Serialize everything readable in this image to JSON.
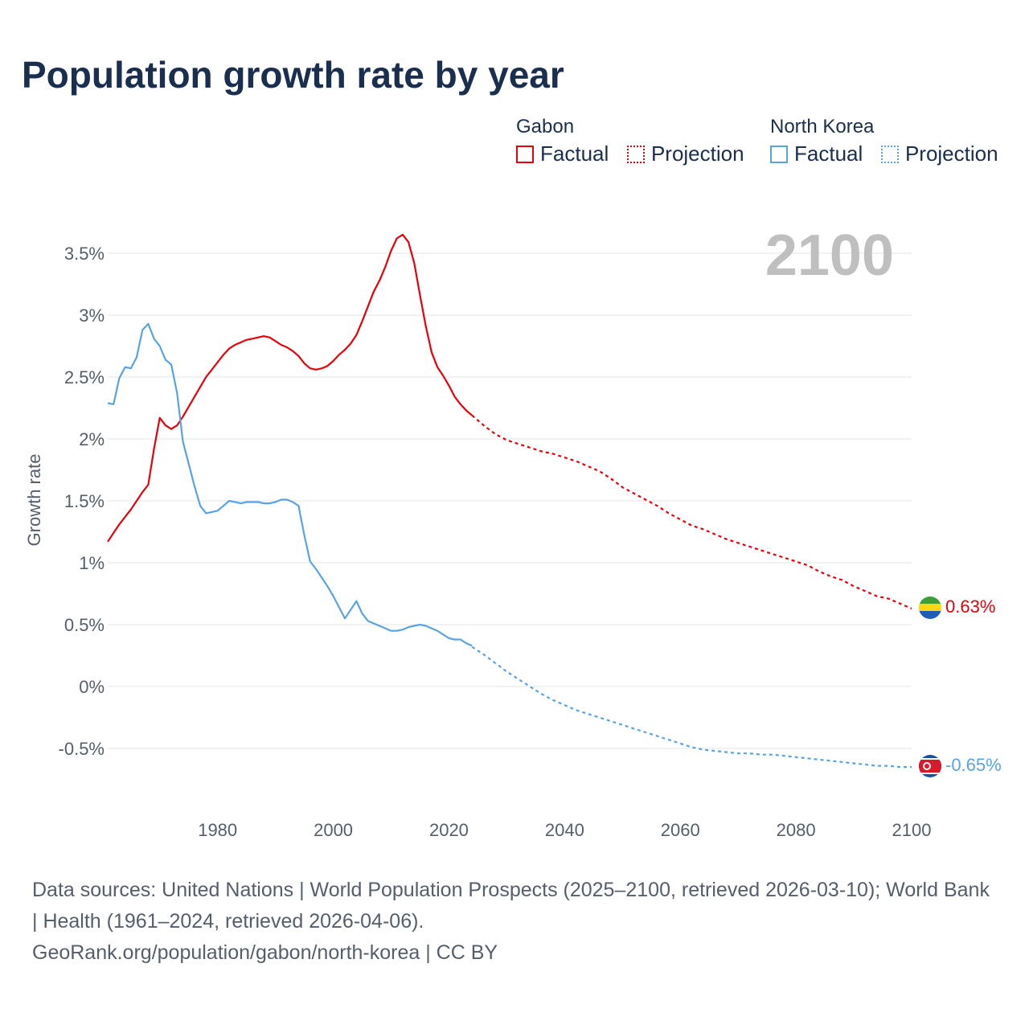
{
  "title": "Population growth rate by year",
  "legend": {
    "groups": [
      {
        "name": "Gabon",
        "color": "#e8000b",
        "factual_label": "Factual",
        "projection_label": "Projection"
      },
      {
        "name": "North Korea",
        "color": "#5aa3e3",
        "factual_label": "Factual",
        "projection_label": "Projection"
      }
    ]
  },
  "footer": {
    "sources": "Data sources: United Nations | World Population Prospects (2025–2100, retrieved 2026-03-10); World Bank | Health (1961–2024, retrieved 2026-04-06).",
    "site": "GeoRank.org/population/gabon/north-korea | CC BY"
  },
  "chart_data": {
    "type": "line",
    "title": "Population growth rate by year",
    "xlabel": "",
    "ylabel": "Growth rate",
    "current_year_label": "2100",
    "xlim": [
      1961,
      2100
    ],
    "ylim": [
      -1.0,
      3.9
    ],
    "x_ticks": [
      1980,
      2000,
      2020,
      2040,
      2060,
      2080,
      2100
    ],
    "y_ticks": [
      -0.5,
      0,
      0.5,
      1,
      1.5,
      2,
      2.5,
      3,
      3.5
    ],
    "y_tick_labels": [
      "-0.5%",
      "0%",
      "0.5%",
      "1%",
      "1.5%",
      "2%",
      "2.5%",
      "3%",
      "3.5%"
    ],
    "grid": true,
    "series": [
      {
        "name": "Gabon",
        "color": "#e8000b",
        "end_label": "0.63%",
        "factual": {
          "x": [
            1961,
            1962,
            1963,
            1964,
            1965,
            1966,
            1967,
            1968,
            1969,
            1970,
            1971,
            1972,
            1973,
            1974,
            1975,
            1976,
            1977,
            1978,
            1979,
            1980,
            1981,
            1982,
            1983,
            1984,
            1985,
            1986,
            1987,
            1988,
            1989,
            1990,
            1991,
            1992,
            1993,
            1994,
            1995,
            1996,
            1997,
            1998,
            1999,
            2000,
            2001,
            2002,
            2003,
            2004,
            2005,
            2006,
            2007,
            2008,
            2009,
            2010,
            2011,
            2012,
            2013,
            2014,
            2015,
            2016,
            2017,
            2018,
            2019,
            2020,
            2021,
            2022,
            2023,
            2024
          ],
          "y": [
            1.17,
            1.24,
            1.31,
            1.37,
            1.43,
            1.5,
            1.57,
            1.63,
            1.92,
            2.17,
            2.11,
            2.08,
            2.11,
            2.18,
            2.26,
            2.34,
            2.42,
            2.5,
            2.56,
            2.62,
            2.68,
            2.73,
            2.76,
            2.78,
            2.8,
            2.81,
            2.82,
            2.83,
            2.82,
            2.79,
            2.76,
            2.74,
            2.71,
            2.67,
            2.61,
            2.57,
            2.56,
            2.57,
            2.59,
            2.63,
            2.68,
            2.72,
            2.77,
            2.84,
            2.95,
            3.07,
            3.19,
            3.28,
            3.39,
            3.52,
            3.62,
            3.65,
            3.59,
            3.42,
            3.16,
            2.91,
            2.7,
            2.58,
            2.51,
            2.43,
            2.34,
            2.28,
            2.23,
            2.19
          ]
        },
        "projection": {
          "x": [
            2024,
            2026,
            2028,
            2030,
            2032,
            2034,
            2036,
            2038,
            2040,
            2042,
            2044,
            2046,
            2048,
            2050,
            2052,
            2054,
            2056,
            2058,
            2060,
            2062,
            2064,
            2066,
            2068,
            2070,
            2072,
            2074,
            2076,
            2078,
            2080,
            2082,
            2084,
            2086,
            2088,
            2090,
            2092,
            2094,
            2096,
            2098,
            2100
          ],
          "y": [
            2.19,
            2.11,
            2.04,
            1.99,
            1.96,
            1.93,
            1.9,
            1.88,
            1.85,
            1.82,
            1.78,
            1.74,
            1.68,
            1.61,
            1.56,
            1.51,
            1.46,
            1.4,
            1.35,
            1.3,
            1.27,
            1.23,
            1.19,
            1.16,
            1.13,
            1.1,
            1.07,
            1.04,
            1.01,
            0.98,
            0.93,
            0.89,
            0.86,
            0.81,
            0.77,
            0.73,
            0.71,
            0.67,
            0.63
          ]
        }
      },
      {
        "name": "North Korea",
        "color": "#5aa3e3",
        "end_label": "-0.65%",
        "factual": {
          "x": [
            1961,
            1962,
            1963,
            1964,
            1965,
            1966,
            1967,
            1968,
            1969,
            1970,
            1971,
            1972,
            1973,
            1974,
            1975,
            1976,
            1977,
            1978,
            1979,
            1980,
            1981,
            1982,
            1983,
            1984,
            1985,
            1986,
            1987,
            1988,
            1989,
            1990,
            1991,
            1992,
            1993,
            1994,
            1995,
            1996,
            1997,
            1998,
            1999,
            2000,
            2001,
            2002,
            2003,
            2004,
            2005,
            2006,
            2007,
            2008,
            2009,
            2010,
            2011,
            2012,
            2013,
            2014,
            2015,
            2016,
            2017,
            2018,
            2019,
            2020,
            2021,
            2022,
            2023,
            2024
          ],
          "y": [
            2.29,
            2.28,
            2.49,
            2.58,
            2.57,
            2.66,
            2.88,
            2.93,
            2.81,
            2.75,
            2.64,
            2.6,
            2.37,
            1.98,
            1.8,
            1.62,
            1.46,
            1.4,
            1.41,
            1.42,
            1.46,
            1.5,
            1.49,
            1.48,
            1.49,
            1.49,
            1.49,
            1.48,
            1.48,
            1.49,
            1.51,
            1.51,
            1.49,
            1.46,
            1.22,
            1.01,
            0.95,
            0.88,
            0.81,
            0.73,
            0.64,
            0.55,
            0.62,
            0.69,
            0.59,
            0.53,
            0.51,
            0.49,
            0.47,
            0.45,
            0.45,
            0.46,
            0.48,
            0.49,
            0.5,
            0.49,
            0.47,
            0.45,
            0.42,
            0.39,
            0.38,
            0.38,
            0.35,
            0.33
          ]
        },
        "projection": {
          "x": [
            2024,
            2026,
            2028,
            2030,
            2032,
            2034,
            2036,
            2038,
            2040,
            2042,
            2044,
            2046,
            2048,
            2050,
            2052,
            2054,
            2056,
            2058,
            2060,
            2062,
            2064,
            2066,
            2068,
            2070,
            2072,
            2074,
            2076,
            2078,
            2080,
            2082,
            2084,
            2086,
            2088,
            2090,
            2092,
            2094,
            2096,
            2098,
            2100
          ],
          "y": [
            0.32,
            0.26,
            0.19,
            0.12,
            0.06,
            0.0,
            -0.06,
            -0.11,
            -0.15,
            -0.19,
            -0.22,
            -0.25,
            -0.28,
            -0.31,
            -0.34,
            -0.37,
            -0.4,
            -0.43,
            -0.46,
            -0.49,
            -0.51,
            -0.52,
            -0.53,
            -0.54,
            -0.54,
            -0.55,
            -0.55,
            -0.56,
            -0.57,
            -0.58,
            -0.59,
            -0.6,
            -0.61,
            -0.62,
            -0.63,
            -0.64,
            -0.64,
            -0.65,
            -0.65
          ]
        }
      }
    ]
  }
}
